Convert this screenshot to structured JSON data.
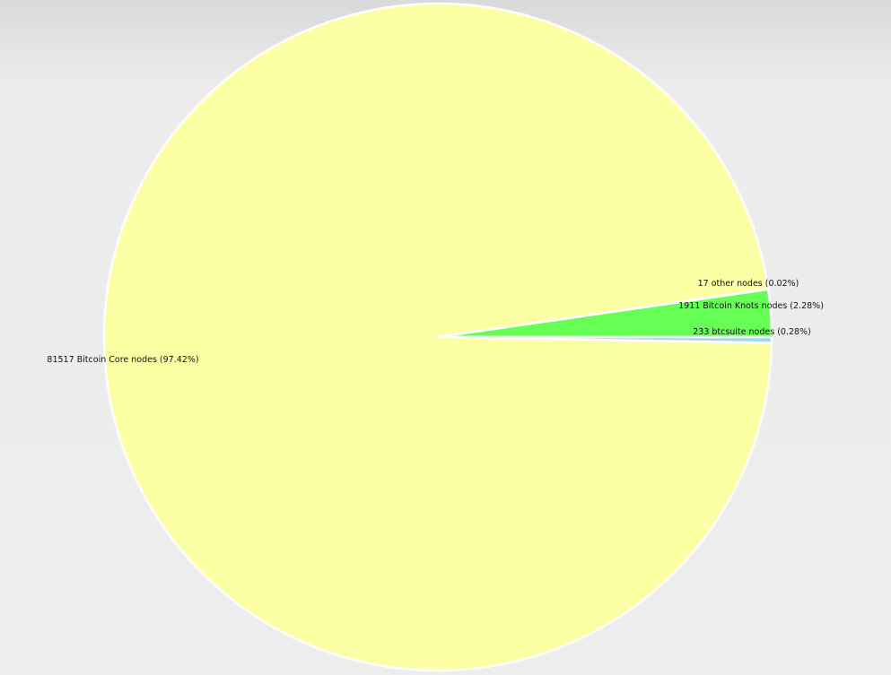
{
  "chart_data": {
    "type": "pie",
    "title": "",
    "slices": [
      {
        "label": "1911 Bitcoin Knots nodes (2.28%)",
        "value": 1911,
        "percent": 2.28,
        "color": "#66ff55"
      },
      {
        "label": "17 other nodes (0.02%)",
        "value": 17,
        "percent": 0.02,
        "color": "#66ff66"
      },
      {
        "label": "81517 Bitcoin Core nodes (97.42%)",
        "value": 81517,
        "percent": 97.42,
        "color": "#fcffa4"
      },
      {
        "label": "233 btcsuite nodes (0.28%)",
        "value": 233,
        "percent": 0.28,
        "color": "#9fd9ee"
      }
    ],
    "stroke_color": "#ffffff"
  }
}
